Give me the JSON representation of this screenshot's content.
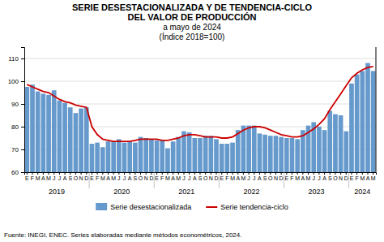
{
  "chart_data": {
    "type": "bar",
    "title": [
      "SERIE DESESTACIONALIZADA Y DE TENDENCIA-CICLO",
      "DEL VALOR DE PRODUCCIÓN"
    ],
    "subtitle": [
      "a mayo de 2024",
      "(Índice 2018=100)"
    ],
    "annotations": [
      "Fuente: INEGI. ENEC. Series elaboradas mediante métodos econométricos, 2024."
    ],
    "categories": [
      "E",
      "F",
      "M",
      "A",
      "M",
      "J",
      "J",
      "A",
      "S",
      "O",
      "N",
      "D",
      "E",
      "F",
      "M",
      "A",
      "M",
      "J",
      "J",
      "A",
      "S",
      "O",
      "N",
      "D",
      "E",
      "F",
      "M",
      "A",
      "M",
      "J",
      "J",
      "A",
      "S",
      "O",
      "N",
      "D",
      "E",
      "F",
      "M",
      "A",
      "M",
      "J",
      "J",
      "A",
      "S",
      "O",
      "N",
      "D",
      "E",
      "F",
      "M",
      "A",
      "M",
      "J",
      "J",
      "A",
      "S",
      "O",
      "N",
      "D",
      "E",
      "F",
      "M",
      "A",
      "M"
    ],
    "x_groups": [
      {
        "label": "2019",
        "count": 12
      },
      {
        "label": "2020",
        "count": 12
      },
      {
        "label": "2021",
        "count": 12
      },
      {
        "label": "2022",
        "count": 12
      },
      {
        "label": "2023",
        "count": 12
      },
      {
        "label": "2024",
        "count": 5
      }
    ],
    "series": [
      {
        "name": "Serie desestacionalizada",
        "type": "bar",
        "color": "#6699cc",
        "values": [
          97.5,
          98.5,
          95.5,
          94.5,
          94.0,
          96.0,
          91.5,
          90.5,
          88.5,
          86.0,
          88.0,
          88.5,
          72.5,
          73.0,
          71.0,
          73.5,
          73.5,
          74.5,
          73.0,
          73.5,
          73.0,
          75.5,
          75.0,
          74.5,
          74.0,
          74.0,
          70.5,
          73.5,
          75.5,
          78.0,
          77.5,
          75.0,
          75.0,
          76.0,
          76.0,
          74.5,
          72.5,
          72.5,
          73.0,
          78.5,
          80.5,
          80.5,
          80.5,
          77.0,
          76.5,
          76.0,
          76.0,
          75.5,
          75.0,
          75.0,
          74.5,
          78.5,
          80.5,
          82.0,
          80.0,
          78.5,
          87.0,
          85.5,
          85.0,
          78.0,
          99.0,
          103.0,
          104.5,
          108.0,
          104.5
        ]
      },
      {
        "name": "Serie tendencia-ciclo",
        "type": "line",
        "color": "#cc0000",
        "values": [
          98.5,
          97.5,
          96.5,
          95.5,
          95.0,
          93.5,
          92.0,
          91.0,
          90.5,
          89.5,
          89.0,
          88.5,
          80.0,
          76.5,
          74.5,
          74.0,
          73.5,
          73.5,
          73.5,
          73.5,
          74.0,
          74.5,
          74.5,
          74.5,
          74.5,
          74.0,
          74.0,
          74.5,
          75.0,
          76.0,
          76.5,
          76.5,
          76.0,
          75.5,
          75.5,
          75.5,
          75.0,
          75.0,
          75.5,
          77.0,
          78.5,
          79.5,
          80.0,
          80.0,
          79.5,
          78.5,
          77.5,
          76.5,
          76.0,
          75.5,
          75.5,
          76.0,
          77.5,
          79.0,
          81.0,
          83.5,
          87.5,
          91.0,
          94.5,
          98.0,
          101.5,
          103.5,
          105.0,
          106.0,
          106.5
        ]
      }
    ],
    "ylim": [
      60,
      115
    ],
    "yticks": [
      60,
      70,
      80,
      90,
      100,
      110
    ],
    "grid": true,
    "legend": "bottom"
  }
}
